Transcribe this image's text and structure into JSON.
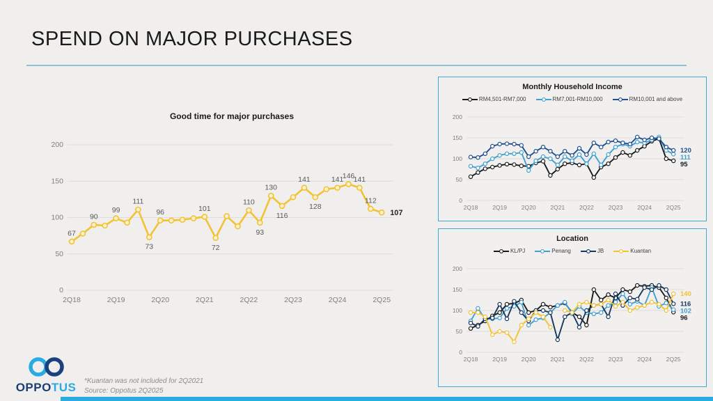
{
  "slide": {
    "title": "SPEND ON MAJOR PURCHASES"
  },
  "footer": {
    "note": "*Kuantan was not included for 2Q2021",
    "source": "Source: Oppotus 2Q2025"
  },
  "logo": {
    "part1": "OPPO",
    "part2": "TUS"
  },
  "colors": {
    "accent_blue": "#29ABE2",
    "panel_border": "#3FA9D0",
    "grid": "#DCDCDA",
    "axis_text": "#7F7F7F",
    "label_text": "#595959",
    "gold": "#F2C233",
    "black_series": "#1A1A1A",
    "light_blue_series": "#41A0D0",
    "dark_blue_series": "#1F4E8C",
    "navy_series": "#17375E"
  },
  "chart_data": [
    {
      "id": "good_time",
      "type": "line",
      "title": "Good time for major purchases",
      "x_ticks": [
        "2Q18",
        "2Q19",
        "2Q20",
        "2Q21",
        "2Q22",
        "2Q23",
        "2Q24",
        "2Q25"
      ],
      "tick_indices": [
        0,
        4,
        8,
        12,
        16,
        20,
        24,
        28
      ],
      "y_ticks": [
        0,
        50,
        100,
        150,
        200
      ],
      "ylim": [
        0,
        200
      ],
      "grid": true,
      "legend_position": "none",
      "series": [
        {
          "name": "Good time for major purchases",
          "color": "#F2C233",
          "values": [
            67,
            78,
            90,
            89,
            99,
            93,
            111,
            73,
            96,
            96,
            97,
            99,
            101,
            72,
            102,
            88,
            110,
            93,
            130,
            116,
            128,
            141,
            128,
            139,
            141,
            146,
            141,
            112,
            107
          ]
        }
      ],
      "point_labels": [
        {
          "index": 0,
          "text": "67",
          "pos": "above"
        },
        {
          "index": 2,
          "text": "90",
          "pos": "above"
        },
        {
          "index": 4,
          "text": "99",
          "pos": "above"
        },
        {
          "index": 6,
          "text": "111",
          "pos": "above"
        },
        {
          "index": 7,
          "text": "73",
          "pos": "below"
        },
        {
          "index": 8,
          "text": "96",
          "pos": "above"
        },
        {
          "index": 12,
          "text": "101",
          "pos": "above"
        },
        {
          "index": 13,
          "text": "72",
          "pos": "below"
        },
        {
          "index": 16,
          "text": "110",
          "pos": "above"
        },
        {
          "index": 17,
          "text": "93",
          "pos": "below"
        },
        {
          "index": 18,
          "text": "130",
          "pos": "above"
        },
        {
          "index": 19,
          "text": "116",
          "pos": "below"
        },
        {
          "index": 21,
          "text": "141",
          "pos": "above"
        },
        {
          "index": 22,
          "text": "128",
          "pos": "below"
        },
        {
          "index": 24,
          "text": "141",
          "pos": "above"
        },
        {
          "index": 25,
          "text": "146",
          "pos": "above"
        },
        {
          "index": 26,
          "text": "141",
          "pos": "above"
        },
        {
          "index": 27,
          "text": "112",
          "pos": "above"
        },
        {
          "index": 28,
          "text": "107",
          "pos": "end"
        }
      ]
    },
    {
      "id": "income",
      "type": "line",
      "title": "Monthly Household Income",
      "x_ticks": [
        "2Q18",
        "2Q19",
        "2Q20",
        "2Q21",
        "2Q22",
        "2Q23",
        "2Q24",
        "2Q25"
      ],
      "tick_indices": [
        0,
        4,
        8,
        12,
        16,
        20,
        24,
        28
      ],
      "y_ticks": [
        0,
        50,
        100,
        150,
        200
      ],
      "ylim": [
        0,
        200
      ],
      "grid": true,
      "legend_position": "top",
      "series": [
        {
          "name": "RM4,501-RM7,000",
          "color": "#1A1A1A",
          "end_label": "95",
          "values": [
            57,
            67,
            76,
            80,
            84,
            87,
            86,
            83,
            82,
            90,
            94,
            60,
            75,
            88,
            90,
            85,
            88,
            55,
            80,
            88,
            103,
            115,
            108,
            120,
            130,
            142,
            148,
            100,
            95
          ]
        },
        {
          "name": "RM7,001-RM10,000",
          "color": "#41A0D0",
          "end_label": "111",
          "values": [
            82,
            78,
            88,
            100,
            108,
            112,
            112,
            115,
            72,
            95,
            105,
            100,
            85,
            105,
            95,
            110,
            88,
            112,
            85,
            110,
            128,
            135,
            130,
            140,
            138,
            145,
            152,
            120,
            111
          ]
        },
        {
          "name": "RM10,001 and above",
          "color": "#1F4E8C",
          "end_label": "120",
          "values": [
            104,
            103,
            112,
            130,
            135,
            136,
            135,
            132,
            105,
            118,
            128,
            118,
            105,
            118,
            108,
            125,
            110,
            138,
            128,
            140,
            143,
            138,
            135,
            152,
            145,
            150,
            148,
            128,
            120
          ]
        }
      ],
      "point_labels": []
    },
    {
      "id": "location",
      "type": "line",
      "title": "Location",
      "x_ticks": [
        "2Q18",
        "2Q19",
        "2Q20",
        "2Q21",
        "2Q22",
        "2Q23",
        "2Q24",
        "2Q25"
      ],
      "tick_indices": [
        0,
        4,
        8,
        12,
        16,
        20,
        24,
        28
      ],
      "y_ticks": [
        0,
        50,
        100,
        150,
        200
      ],
      "ylim": [
        0,
        200
      ],
      "grid": true,
      "legend_position": "top",
      "series": [
        {
          "name": "KL/PJ",
          "color": "#1A1A1A",
          "end_label": "96",
          "values": [
            57,
            65,
            75,
            87,
            95,
            115,
            117,
            125,
            95,
            100,
            115,
            108,
            112,
            118,
            95,
            85,
            65,
            150,
            125,
            138,
            130,
            150,
            145,
            160,
            158,
            160,
            155,
            130,
            96
          ]
        },
        {
          "name": "Penang",
          "color": "#41A0D0",
          "end_label": "102",
          "values": [
            75,
            105,
            80,
            80,
            82,
            105,
            110,
            120,
            65,
            78,
            82,
            95,
            112,
            120,
            92,
            110,
            95,
            92,
            95,
            112,
            120,
            140,
            115,
            122,
            112,
            155,
            110,
            118,
            102
          ]
        },
        {
          "name": "JB",
          "color": "#17375E",
          "end_label": "116",
          "values": [
            70,
            62,
            80,
            82,
            115,
            80,
            122,
            95,
            75,
            100,
            100,
            95,
            30,
            85,
            95,
            60,
            100,
            112,
            115,
            85,
            140,
            112,
            130,
            127,
            155,
            150,
            160,
            150,
            116
          ]
        },
        {
          "name": "Kuantan",
          "color": "#F2C233",
          "end_label": "140",
          "values": [
            95,
            95,
            85,
            42,
            50,
            47,
            25,
            65,
            80,
            95,
            85,
            60,
            null,
            100,
            95,
            115,
            120,
            112,
            115,
            125,
            110,
            120,
            100,
            107,
            112,
            120,
            115,
            100,
            140
          ]
        }
      ],
      "point_labels": []
    }
  ]
}
